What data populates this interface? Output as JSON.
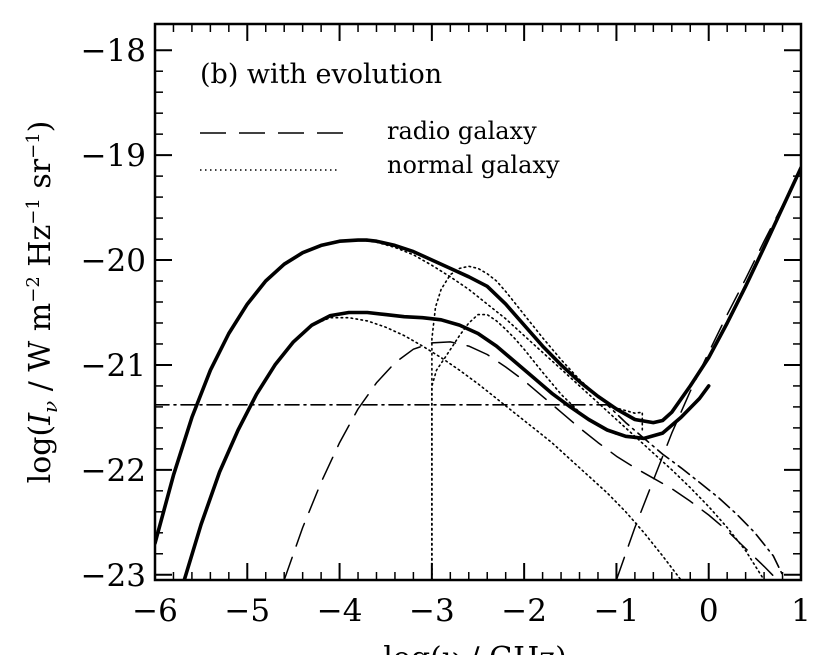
{
  "chart_data": {
    "type": "line",
    "panel_label": "(b) with evolution",
    "xlabel": "log(ν / GHz)",
    "ylabel_parts": {
      "pre": "log(",
      "sym": "I",
      "sub": "ν",
      "mid1": " / W m",
      "sup1": "−2",
      "mid2": " Hz",
      "sup2": "−1",
      "mid3": " sr",
      "sup3": "−1",
      "post": ")"
    },
    "xlim": [
      -6,
      1
    ],
    "ylim": [
      -23.05,
      -17.75
    ],
    "x_ticks": [
      -6,
      -5,
      -4,
      -3,
      -2,
      -1,
      0,
      1
    ],
    "x_tick_labels": [
      "−6",
      "−5",
      "−4",
      "−3",
      "−2",
      "−1",
      "0",
      "1"
    ],
    "y_ticks": [
      -23,
      -22,
      -21,
      -20,
      -19,
      -18
    ],
    "y_tick_labels": [
      "−23",
      "−22",
      "−21",
      "−20",
      "−19",
      "−18"
    ],
    "legend": [
      {
        "label": "radio galaxy",
        "style": "dashed"
      },
      {
        "label": "normal galaxy",
        "style": "dotted"
      }
    ],
    "series": [
      {
        "style": "solid-thick",
        "x": [
          -6,
          -5.8,
          -5.6,
          -5.4,
          -5.2,
          -5,
          -4.8,
          -4.6,
          -4.4,
          -4.2,
          -4,
          -3.8,
          -3.7,
          -3.6,
          -3.4,
          -3.2,
          -3,
          -2.8,
          -2.6,
          -2.4,
          -2.2,
          -2,
          -1.8,
          -1.6,
          -1.4,
          -1.2,
          -1,
          -0.8,
          -0.6,
          -0.5,
          -0.4,
          -0.2,
          0,
          0.2,
          0.4,
          0.6,
          0.8,
          1
        ],
        "y": [
          -22.7,
          -22.05,
          -21.5,
          -21.05,
          -20.7,
          -20.42,
          -20.2,
          -20.04,
          -19.93,
          -19.86,
          -19.82,
          -19.81,
          -19.81,
          -19.82,
          -19.86,
          -19.92,
          -20.0,
          -20.08,
          -20.16,
          -20.25,
          -20.42,
          -20.62,
          -20.82,
          -21.0,
          -21.16,
          -21.3,
          -21.42,
          -21.52,
          -21.55,
          -21.53,
          -21.45,
          -21.2,
          -20.93,
          -20.6,
          -20.25,
          -19.88,
          -19.5,
          -19.12
        ]
      },
      {
        "style": "solid-thick",
        "x": [
          -5.7,
          -5.5,
          -5.3,
          -5.1,
          -4.9,
          -4.7,
          -4.5,
          -4.3,
          -4.1,
          -3.9,
          -3.7,
          -3.5,
          -3.3,
          -3.1,
          -2.9,
          -2.7,
          -2.5,
          -2.3,
          -2.1,
          -1.9,
          -1.7,
          -1.5,
          -1.3,
          -1.1,
          -0.9,
          -0.7,
          -0.5,
          -0.3,
          -0.1,
          0
        ],
        "y": [
          -23.1,
          -22.52,
          -22.02,
          -21.62,
          -21.28,
          -21.0,
          -20.78,
          -20.62,
          -20.53,
          -20.5,
          -20.5,
          -20.52,
          -20.54,
          -20.55,
          -20.57,
          -20.62,
          -20.7,
          -20.82,
          -20.97,
          -21.12,
          -21.27,
          -21.4,
          -21.52,
          -21.62,
          -21.68,
          -21.7,
          -21.65,
          -21.5,
          -21.32,
          -21.2
        ]
      },
      {
        "style": "dotted",
        "x": [
          -6,
          -5.8,
          -5.6,
          -5.4,
          -5.2,
          -5,
          -4.8,
          -4.6,
          -4.4,
          -4.2,
          -4,
          -3.8,
          -3.6,
          -3.4,
          -3.2,
          -3,
          -2.8,
          -2.6,
          -2.4,
          -2.2,
          -2,
          -1.8,
          -1.6,
          -1.4,
          -1.2,
          -1,
          -0.8,
          -0.6,
          -0.4,
          -0.2,
          0,
          0.2,
          0.4,
          0.6
        ],
        "y": [
          -22.7,
          -22.05,
          -21.5,
          -21.05,
          -20.7,
          -20.42,
          -20.2,
          -20.04,
          -19.93,
          -19.86,
          -19.82,
          -19.81,
          -19.83,
          -19.88,
          -19.95,
          -20.05,
          -20.16,
          -20.28,
          -20.42,
          -20.56,
          -20.72,
          -20.88,
          -21.04,
          -21.2,
          -21.36,
          -21.52,
          -21.68,
          -21.84,
          -22.0,
          -22.17,
          -22.35,
          -22.55,
          -22.77,
          -23.05
        ]
      },
      {
        "style": "dotted",
        "x": [
          -5.7,
          -5.5,
          -5.3,
          -5.1,
          -4.9,
          -4.7,
          -4.5,
          -4.3,
          -4.1,
          -3.9,
          -3.7,
          -3.5,
          -3.3,
          -3.1,
          -2.9,
          -2.7,
          -2.5,
          -2.3,
          -2.1,
          -1.9,
          -1.7,
          -1.5,
          -1.3,
          -1.1,
          -0.9,
          -0.7,
          -0.5,
          -0.3
        ],
        "y": [
          -23.1,
          -22.52,
          -22.02,
          -21.62,
          -21.28,
          -21.0,
          -20.78,
          -20.62,
          -20.55,
          -20.55,
          -20.58,
          -20.64,
          -20.72,
          -20.82,
          -20.93,
          -21.05,
          -21.18,
          -21.32,
          -21.46,
          -21.6,
          -21.74,
          -21.9,
          -22.06,
          -22.22,
          -22.4,
          -22.6,
          -22.82,
          -23.05
        ]
      },
      {
        "style": "dotted",
        "x": [
          -3,
          -3,
          -2.96,
          -2.9,
          -2.8,
          -2.7,
          -2.6,
          -2.5,
          -2.4,
          -2.3,
          -2.2,
          -2.1,
          -2,
          -1.8,
          -1.6,
          -1.4,
          -1.2,
          -1,
          -0.8,
          -0.72,
          -0.72
        ],
        "y": [
          -23.05,
          -20.75,
          -20.45,
          -20.28,
          -20.14,
          -20.08,
          -20.06,
          -20.08,
          -20.13,
          -20.2,
          -20.3,
          -20.41,
          -20.52,
          -20.74,
          -20.95,
          -21.14,
          -21.3,
          -21.41,
          -21.46,
          -21.45,
          -21.62
        ]
      },
      {
        "style": "dotted",
        "x": [
          -3,
          -3,
          -2.95,
          -2.85,
          -2.7,
          -2.6,
          -2.5,
          -2.4,
          -2.3,
          -2.2,
          -2.1,
          -2,
          -1.8,
          -1.6,
          -1.4,
          -1.2,
          -1,
          -0.8,
          -0.72
        ],
        "y": [
          -23.05,
          -21.2,
          -21.05,
          -20.92,
          -20.72,
          -20.6,
          -20.52,
          -20.52,
          -20.58,
          -20.66,
          -20.75,
          -20.85,
          -21.07,
          -21.28,
          -21.45,
          -21.58,
          -21.66,
          -21.7,
          -21.7
        ]
      },
      {
        "style": "dashed",
        "x": [
          -4.6,
          -4.4,
          -4.2,
          -4,
          -3.8,
          -3.6,
          -3.4,
          -3.2,
          -3,
          -2.8,
          -2.6,
          -2.4,
          -2.2,
          -2,
          -1.8,
          -1.6,
          -1.4,
          -1.2,
          -1,
          -0.8,
          -0.6,
          -0.4,
          -0.2,
          0,
          0.2,
          0.4,
          0.6,
          0.8
        ],
        "y": [
          -23.05,
          -22.55,
          -22.12,
          -21.74,
          -21.42,
          -21.17,
          -20.98,
          -20.85,
          -20.79,
          -20.78,
          -20.82,
          -20.9,
          -21.02,
          -21.15,
          -21.3,
          -21.45,
          -21.6,
          -21.74,
          -21.87,
          -21.98,
          -22.08,
          -22.18,
          -22.3,
          -22.43,
          -22.58,
          -22.75,
          -22.92,
          -23.1
        ]
      },
      {
        "style": "dashed",
        "x": [
          -1,
          -0.8,
          -0.6,
          -0.4,
          -0.2,
          0,
          0.2,
          0.4,
          0.6,
          0.8,
          1
        ],
        "y": [
          -23.05,
          -22.55,
          -22.1,
          -21.65,
          -21.25,
          -20.88,
          -20.52,
          -20.18,
          -19.82,
          -19.48,
          -19.12
        ]
      },
      {
        "style": "dashdot",
        "x": [
          -6,
          -1.1,
          -0.9,
          -0.7,
          -0.5,
          -0.3,
          -0.1,
          0.1,
          0.3,
          0.5,
          0.7,
          0.8
        ],
        "y": [
          -21.38,
          -21.38,
          -21.55,
          -21.7,
          -21.85,
          -21.98,
          -22.12,
          -22.26,
          -22.42,
          -22.6,
          -22.82,
          -23.0
        ]
      }
    ]
  }
}
